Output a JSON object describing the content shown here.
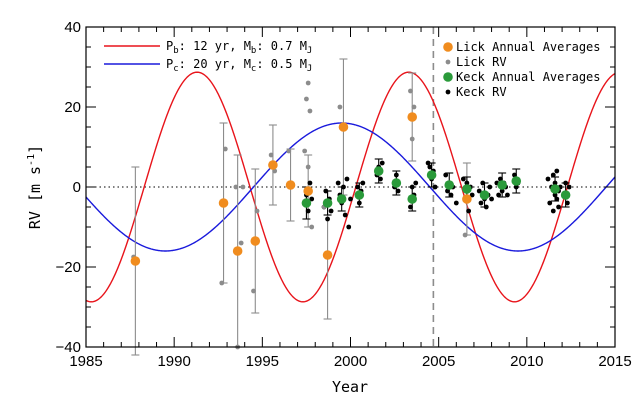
{
  "chart_data": {
    "type": "scatter",
    "xlabel": "Year",
    "ylabel_main": "RV [m s",
    "ylabel_sup": "-1",
    "ylabel_tail": "]",
    "xlim": [
      1985,
      2015
    ],
    "ylim": [
      -40,
      40
    ],
    "xticks": [
      1985,
      1990,
      1995,
      2000,
      2005,
      2010,
      2015
    ],
    "yticks": [
      -40,
      -20,
      0,
      20,
      40
    ],
    "x_tick_labels": [
      "1985",
      "1990",
      "1995",
      "2000",
      "2005",
      "2010",
      "2015"
    ],
    "y_tick_labels": [
      "−40",
      "−20",
      "0",
      "20",
      "40"
    ],
    "zero_line": 0,
    "vertical_line_x": 2004.7,
    "colors": {
      "planet_b": "#e8141b",
      "planet_c": "#1a1adc",
      "lick_avg": "#f08c1e",
      "lick_rv": "#8c8c8c",
      "keck_avg": "#2a9a3a",
      "keck_rv": "#000000",
      "error_bar": "#8c8c8c",
      "vline": "#8c8c8c"
    },
    "legend_left_placement": "top-left",
    "legend_right_placement": "top-right",
    "models": [
      {
        "name": "b",
        "period": 12,
        "amplitude": 28.7,
        "peak_year": 1991.3,
        "color_key": "planet_b",
        "label": {
          "p": "P",
          "psub": "b",
          "prest": ": 12 yr, ",
          "m": "M",
          "msub": "b",
          "mrest": ": 0.7 M",
          "unit_sub": "J"
        }
      },
      {
        "name": "c",
        "period": 20,
        "amplitude": 16,
        "peak_year": 1999.5,
        "color_key": "planet_c",
        "label": {
          "p": "P",
          "psub": "c",
          "prest": ": 20 yr, ",
          "m": "M",
          "msub": "c",
          "mrest": ": 0.5 M",
          "unit_sub": "J"
        }
      }
    ],
    "legend_right": [
      {
        "label": "Lick Annual Averages",
        "color_key": "lick_avg",
        "size": "big"
      },
      {
        "label": "Lick RV",
        "color_key": "lick_rv",
        "size": "small"
      },
      {
        "label": "Keck Annual Averages",
        "color_key": "keck_avg",
        "size": "big"
      },
      {
        "label": "Keck RV",
        "color_key": "keck_rv",
        "size": "small"
      }
    ],
    "lick_averages": [
      {
        "x": 1987.8,
        "y": -18.5,
        "err": 23.5
      },
      {
        "x": 1992.8,
        "y": -4,
        "err": 20
      },
      {
        "x": 1993.6,
        "y": -16,
        "err": 24
      },
      {
        "x": 1994.6,
        "y": -13.5,
        "err": 18
      },
      {
        "x": 1995.6,
        "y": 5.5,
        "err": 10
      },
      {
        "x": 1996.6,
        "y": 0.5,
        "err": 9
      },
      {
        "x": 1997.6,
        "y": -1,
        "err": 9
      },
      {
        "x": 1998.7,
        "y": -17,
        "err": 16
      },
      {
        "x": 1999.6,
        "y": 15,
        "err": 17
      },
      {
        "x": 2003.5,
        "y": 17.5,
        "err": 11
      },
      {
        "x": 2006.6,
        "y": -3,
        "err": 9
      }
    ],
    "keck_averages": [
      {
        "x": 1997.5,
        "y": -4,
        "err": 4
      },
      {
        "x": 1998.7,
        "y": -4,
        "err": 3
      },
      {
        "x": 1999.5,
        "y": -3,
        "err": 3
      },
      {
        "x": 2000.5,
        "y": -2,
        "err": 3
      },
      {
        "x": 2001.6,
        "y": 4,
        "err": 3
      },
      {
        "x": 2002.6,
        "y": 1,
        "err": 3
      },
      {
        "x": 2003.5,
        "y": -3,
        "err": 3
      },
      {
        "x": 2004.6,
        "y": 3,
        "err": 3
      },
      {
        "x": 2005.6,
        "y": 0.5,
        "err": 3
      },
      {
        "x": 2006.6,
        "y": -0.5,
        "err": 3
      },
      {
        "x": 2007.6,
        "y": -2,
        "err": 3
      },
      {
        "x": 2008.6,
        "y": 0.5,
        "err": 3
      },
      {
        "x": 2009.4,
        "y": 1.5,
        "err": 3
      },
      {
        "x": 2011.6,
        "y": -0.5,
        "err": 3
      },
      {
        "x": 2012.2,
        "y": -2,
        "err": 3
      }
    ],
    "lick_rv": [
      [
        1987.7,
        -17.5
      ],
      [
        1992.7,
        -24
      ],
      [
        1992.9,
        9.5
      ],
      [
        1993.5,
        0
      ],
      [
        1993.6,
        -40
      ],
      [
        1993.8,
        -14
      ],
      [
        1993.9,
        0
      ],
      [
        1994.5,
        -26
      ],
      [
        1994.7,
        -6
      ],
      [
        1995.5,
        8
      ],
      [
        1995.7,
        4
      ],
      [
        1996.5,
        9
      ],
      [
        1996.6,
        0
      ],
      [
        1997.4,
        9
      ],
      [
        1997.5,
        22
      ],
      [
        1997.6,
        26
      ],
      [
        1997.7,
        19
      ],
      [
        1997.8,
        -10
      ],
      [
        1997.6,
        5
      ],
      [
        1998.5,
        -5
      ],
      [
        1998.7,
        -16.5
      ],
      [
        1999.4,
        20
      ],
      [
        1999.6,
        15
      ],
      [
        2003.4,
        24
      ],
      [
        2003.5,
        12
      ],
      [
        2003.6,
        20
      ],
      [
        2006.5,
        -12
      ],
      [
        2006.6,
        -1
      ]
    ],
    "keck_rv": [
      [
        1997.5,
        -2
      ],
      [
        1997.6,
        -6
      ],
      [
        1997.7,
        1
      ],
      [
        1997.8,
        -3
      ],
      [
        1998.5,
        -5
      ],
      [
        1998.6,
        -1
      ],
      [
        1998.7,
        -8
      ],
      [
        1998.8,
        -3
      ],
      [
        1998.9,
        -6
      ],
      [
        1999.3,
        1
      ],
      [
        1999.4,
        -2
      ],
      [
        1999.5,
        -4
      ],
      [
        1999.6,
        0
      ],
      [
        1999.7,
        -7
      ],
      [
        1999.8,
        2
      ],
      [
        1999.9,
        -10
      ],
      [
        2000.0,
        -3
      ],
      [
        2000.4,
        0
      ],
      [
        2000.5,
        -4
      ],
      [
        2000.6,
        -1
      ],
      [
        2000.7,
        1
      ],
      [
        2001.5,
        3
      ],
      [
        2001.6,
        5
      ],
      [
        2001.7,
        2
      ],
      [
        2001.8,
        6
      ],
      [
        2002.5,
        0
      ],
      [
        2002.6,
        3
      ],
      [
        2002.7,
        -1
      ],
      [
        2003.4,
        -5
      ],
      [
        2003.5,
        0
      ],
      [
        2003.6,
        -2
      ],
      [
        2003.7,
        1
      ],
      [
        2004.4,
        6
      ],
      [
        2004.5,
        5
      ],
      [
        2004.6,
        2
      ],
      [
        2004.7,
        4
      ],
      [
        2004.8,
        0
      ],
      [
        2005.4,
        3
      ],
      [
        2005.5,
        -1
      ],
      [
        2005.6,
        1
      ],
      [
        2005.7,
        -2
      ],
      [
        2005.8,
        0
      ],
      [
        2006.0,
        -4
      ],
      [
        2006.4,
        2
      ],
      [
        2006.5,
        -3
      ],
      [
        2006.6,
        1
      ],
      [
        2006.7,
        -6
      ],
      [
        2006.8,
        0
      ],
      [
        2006.9,
        -2
      ],
      [
        2007.3,
        -1
      ],
      [
        2007.4,
        -4
      ],
      [
        2007.5,
        1
      ],
      [
        2007.6,
        -3
      ],
      [
        2007.7,
        -5
      ],
      [
        2007.8,
        -2
      ],
      [
        2007.9,
        0
      ],
      [
        2008.0,
        -3
      ],
      [
        2008.3,
        1
      ],
      [
        2008.4,
        -2
      ],
      [
        2008.5,
        2
      ],
      [
        2008.6,
        -1
      ],
      [
        2008.7,
        1
      ],
      [
        2008.8,
        0
      ],
      [
        2008.9,
        -2
      ],
      [
        2009.3,
        3
      ],
      [
        2009.4,
        0
      ],
      [
        2009.5,
        1
      ],
      [
        2011.2,
        2
      ],
      [
        2011.3,
        -4
      ],
      [
        2011.4,
        0
      ],
      [
        2011.5,
        -6
      ],
      [
        2011.5,
        3
      ],
      [
        2011.6,
        -2
      ],
      [
        2011.6,
        1
      ],
      [
        2011.7,
        -3
      ],
      [
        2011.7,
        4
      ],
      [
        2011.8,
        -1
      ],
      [
        2011.8,
        -5
      ],
      [
        2011.9,
        0
      ],
      [
        2012.1,
        -2
      ],
      [
        2012.2,
        1
      ],
      [
        2012.3,
        -4
      ],
      [
        2012.4,
        0
      ]
    ]
  }
}
